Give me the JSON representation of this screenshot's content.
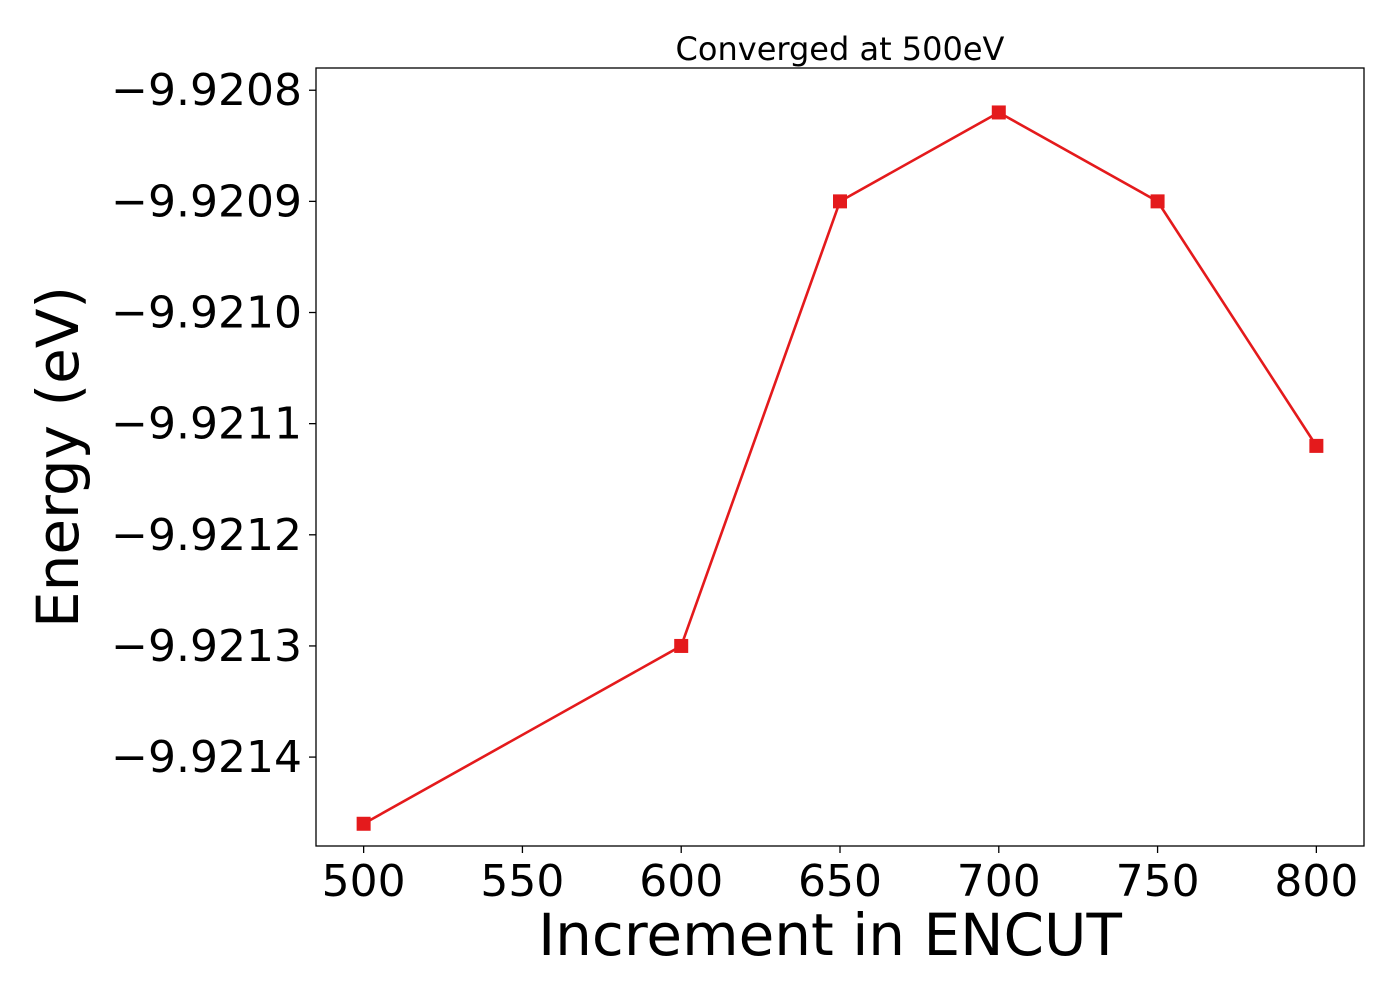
{
  "chart_data": {
    "type": "line",
    "title": "Converged at 500eV",
    "xlabel": "Increment in ENCUT",
    "ylabel": "Energy (eV)",
    "x": [
      500,
      600,
      650,
      700,
      750,
      800
    ],
    "series": [
      {
        "values": [
          -9.92146,
          -9.9213,
          -9.9209,
          -9.92082,
          -9.9209,
          -9.92112
        ],
        "color": "#e41a1c",
        "marker": "square"
      }
    ],
    "xlim": [
      485,
      815
    ],
    "ylim": [
      -9.92148,
      -9.92078
    ],
    "xticks": [
      500,
      550,
      600,
      650,
      700,
      750,
      800
    ],
    "xtick_labels": [
      "500",
      "550",
      "600",
      "650",
      "700",
      "750",
      "800"
    ],
    "yticks": [
      -9.9208,
      -9.9209,
      -9.921,
      -9.9211,
      -9.9212,
      -9.9213,
      -9.9214
    ],
    "ytick_labels": [
      "−9.9208",
      "−9.9209",
      "−9.9210",
      "−9.9211",
      "−9.9212",
      "−9.9213",
      "−9.9214"
    ],
    "grid": false,
    "legend": "none"
  }
}
